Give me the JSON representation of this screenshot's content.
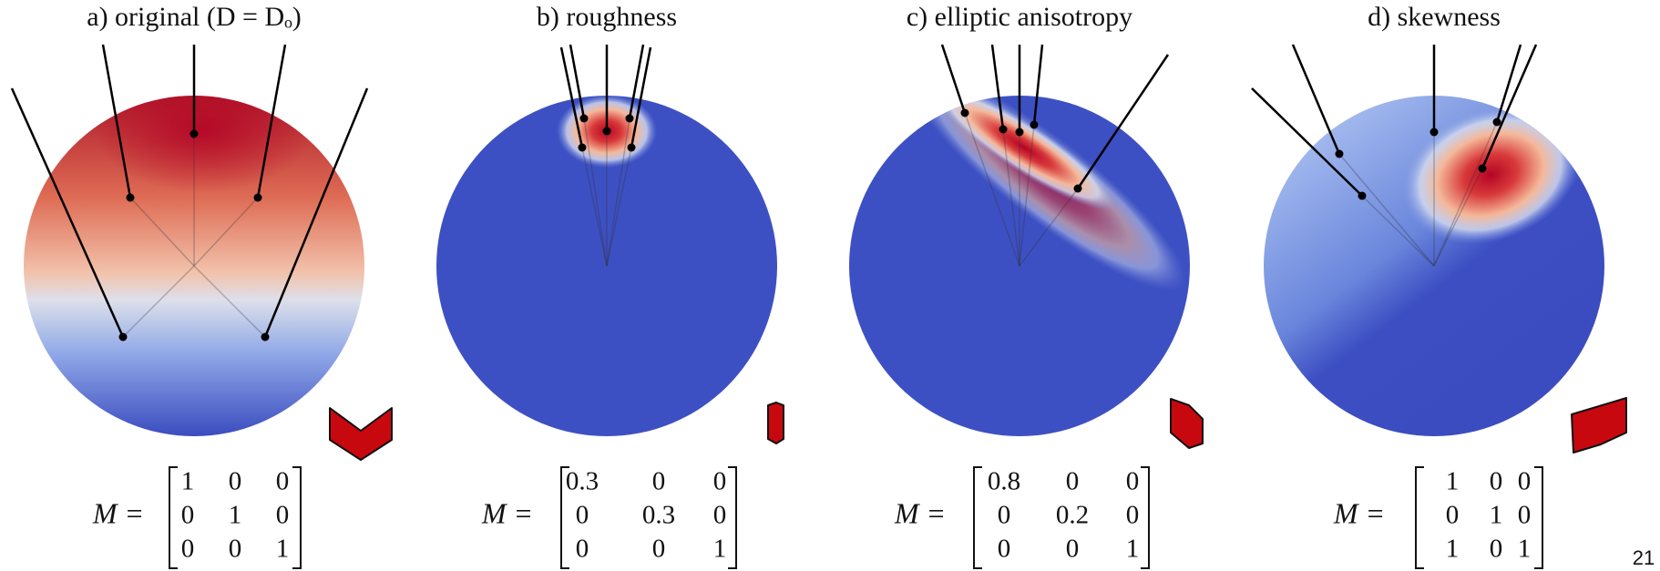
{
  "panels": [
    {
      "title": "a) original (D = Dₒ)",
      "label": "M =",
      "matrix": [
        [
          1,
          0,
          0
        ],
        [
          0,
          1,
          0
        ],
        [
          0,
          0,
          1
        ]
      ]
    },
    {
      "title": "b) roughness",
      "label": "M =",
      "matrix": [
        [
          0.3,
          0,
          0
        ],
        [
          0,
          0.3,
          0
        ],
        [
          0,
          0,
          1
        ]
      ]
    },
    {
      "title": "c) elliptic anisotropy",
      "label": "M =",
      "matrix": [
        [
          0.8,
          0,
          0
        ],
        [
          0,
          0.2,
          0
        ],
        [
          0,
          0,
          1
        ]
      ]
    },
    {
      "title": "d) skewness",
      "label": "M =",
      "matrix": [
        [
          1,
          0,
          0
        ],
        [
          0,
          1,
          0
        ],
        [
          1,
          0,
          1
        ]
      ]
    }
  ],
  "page_number": "21"
}
